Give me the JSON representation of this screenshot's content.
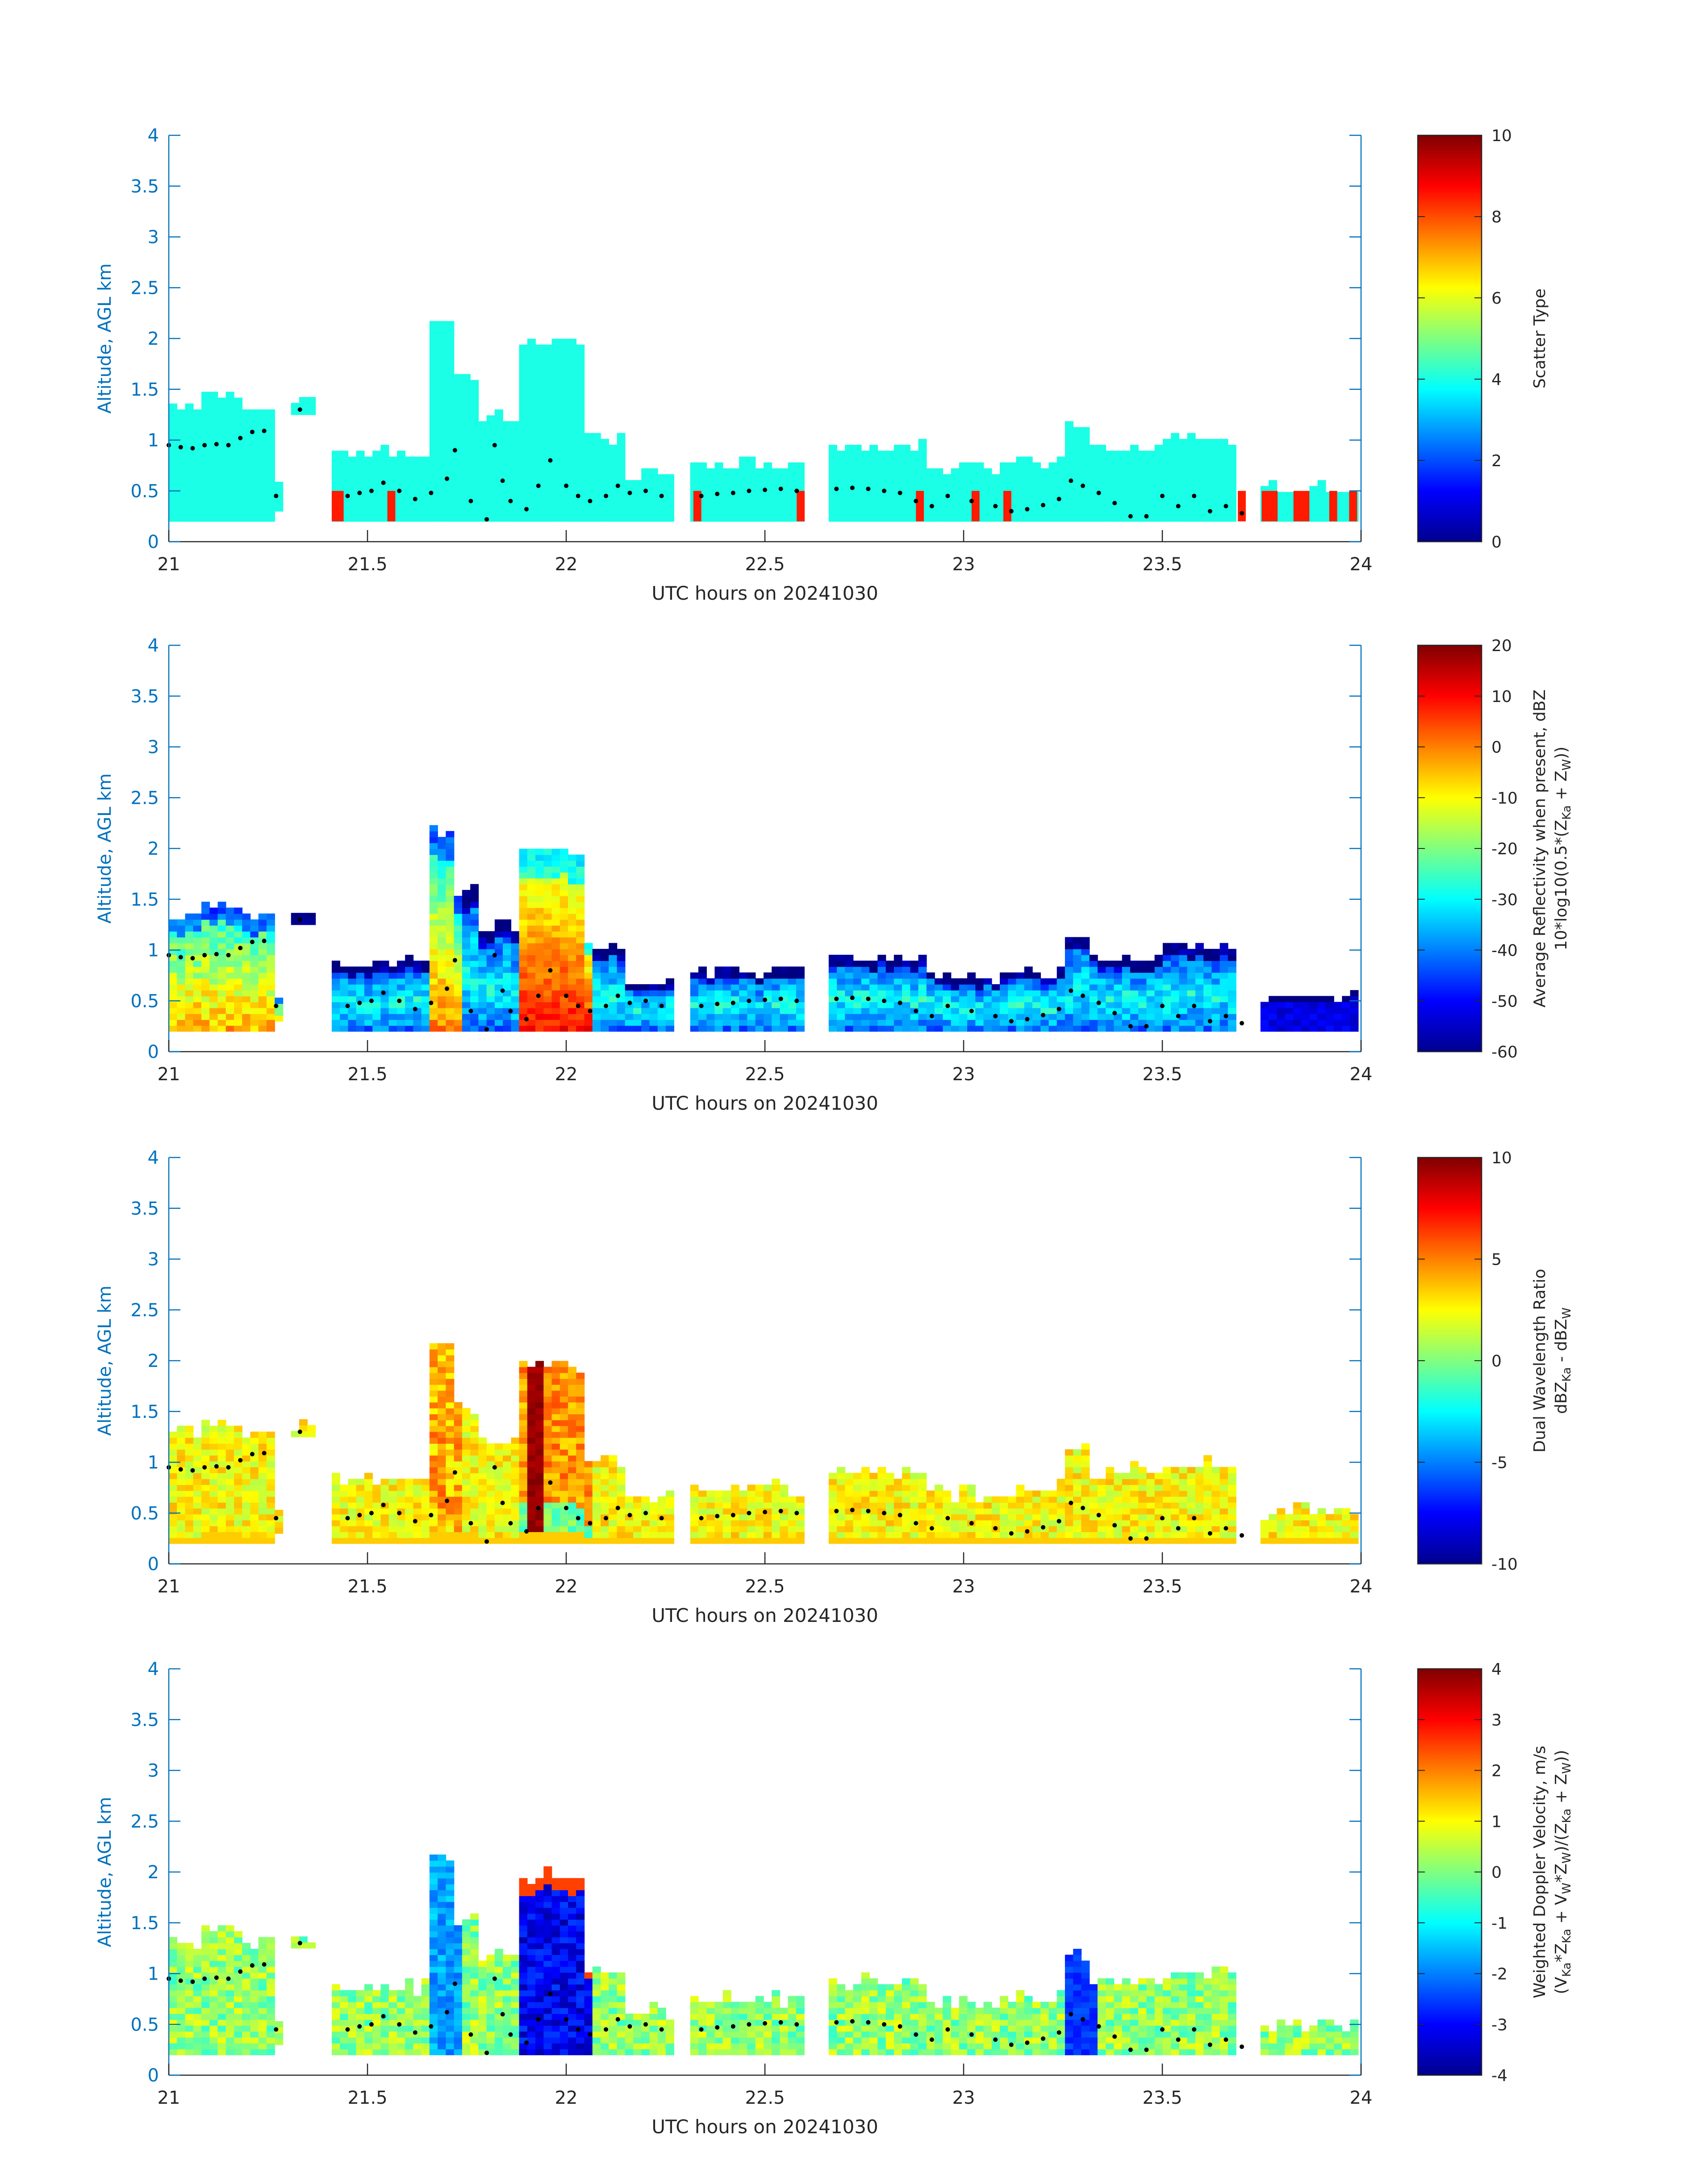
{
  "figure": {
    "panel_count": 4
  },
  "chart_data": [
    {
      "type": "heatmap",
      "id": "scatter",
      "xlabel": "UTC hours on 20241030",
      "ylabel": "Altitude, AGL km",
      "xlim": [
        21,
        24
      ],
      "ylim": [
        0,
        4
      ],
      "xticks": [
        "21",
        "21.5",
        "22",
        "22.5",
        "23",
        "23.5",
        "24"
      ],
      "yticks": [
        "0",
        "0.5",
        "1",
        "1.5",
        "2",
        "2.5",
        "3",
        "3.5",
        "4"
      ],
      "colorbar": {
        "label": "Scatter Type",
        "range": [
          0,
          10
        ],
        "ticks": [
          "0",
          "2",
          "4",
          "6",
          "8",
          "10"
        ]
      },
      "mode": "scatter",
      "cells_note": "mostly scatter type ~4 (cyan), type ~8.5 (orange) patches near ground"
    },
    {
      "type": "heatmap",
      "id": "reflectivity",
      "xlabel": "UTC hours on 20241030",
      "ylabel": "Altitude, AGL km",
      "xlim": [
        21,
        24
      ],
      "ylim": [
        0,
        4
      ],
      "xticks": [
        "21",
        "21.5",
        "22",
        "22.5",
        "23",
        "23.5",
        "24"
      ],
      "yticks": [
        "0",
        "0.5",
        "1",
        "1.5",
        "2",
        "2.5",
        "3",
        "3.5",
        "4"
      ],
      "colorbar": {
        "label_line1": "Average Reflectivity when present, dBZ",
        "label_line2_main": "10*log10(0.5*(Z",
        "label_line2_sub1": "Ka",
        "label_line2_mid": " + Z",
        "label_line2_sub2": "W",
        "label_line2_end": "))",
        "range": [
          -60,
          20
        ],
        "ticks": [
          "-60",
          "-50",
          "-40",
          "-30",
          "-20",
          "-10",
          "0",
          "10",
          "20"
        ]
      },
      "mode": "reflectivity"
    },
    {
      "type": "heatmap",
      "id": "dwr",
      "xlabel": "UTC hours on 20241030",
      "ylabel": "Altitude, AGL km",
      "xlim": [
        21,
        24
      ],
      "ylim": [
        0,
        4
      ],
      "xticks": [
        "21",
        "21.5",
        "22",
        "22.5",
        "23",
        "23.5",
        "24"
      ],
      "yticks": [
        "0",
        "0.5",
        "1",
        "1.5",
        "2",
        "2.5",
        "3",
        "3.5",
        "4"
      ],
      "colorbar": {
        "label_line1": "Dual Wavelength Ratio",
        "label_line2_main": "dBZ",
        "label_line2_sub1": "Ka",
        "label_line2_mid": " - dBZ",
        "label_line2_sub2": "W",
        "label_line2_end": "",
        "range": [
          -10,
          10
        ],
        "ticks": [
          "-10",
          "-5",
          "0",
          "5",
          "10"
        ]
      },
      "mode": "dwr"
    },
    {
      "type": "heatmap",
      "id": "velocity",
      "xlabel": "UTC hours on 20241030",
      "ylabel": "Altitude, AGL km",
      "xlim": [
        21,
        24
      ],
      "ylim": [
        0,
        4
      ],
      "xticks": [
        "21",
        "21.5",
        "22",
        "22.5",
        "23",
        "23.5",
        "24"
      ],
      "yticks": [
        "0",
        "0.5",
        "1",
        "1.5",
        "2",
        "2.5",
        "3",
        "3.5",
        "4"
      ],
      "colorbar": {
        "label_line1": "Weighted Doppler Velocity, m/s",
        "label_line2_main": "(V",
        "label_line2_sub1": "Ka",
        "label_line2_mid": "*Z",
        "label_line2_sub2": "Ka",
        "label_line2_end": " + V",
        "label_line2_sub3": "W",
        "label_line2_end2": "*Z",
        "label_line2_sub4": "W",
        "label_line2_end3": ")/(Z",
        "label_line2_sub5": "Ka",
        "label_line2_end4": " + Z",
        "label_line2_sub6": "W",
        "label_line2_end5": "))",
        "range": [
          -4,
          4
        ],
        "ticks": [
          "-4",
          "-3",
          "-2",
          "-1",
          "0",
          "1",
          "2",
          "3",
          "4"
        ]
      },
      "mode": "velocity"
    }
  ],
  "cloud_profile": {
    "note": "cloud top altitude (km) vs time, each entry [start_hour, end_hour, base_km, top_km]",
    "segments": [
      [
        21.0,
        21.27,
        0.2,
        1.3
      ],
      [
        21.08,
        21.18,
        0.2,
        1.42
      ],
      [
        21.3,
        21.36,
        1.25,
        1.37
      ],
      [
        21.22,
        21.28,
        0.3,
        0.55
      ],
      [
        21.4,
        21.65,
        0.2,
        0.85
      ],
      [
        21.65,
        21.72,
        0.2,
        2.15
      ],
      [
        21.7,
        21.78,
        0.2,
        1.55
      ],
      [
        21.78,
        21.88,
        0.2,
        1.2
      ],
      [
        21.88,
        22.05,
        0.2,
        1.95
      ],
      [
        22.05,
        22.15,
        0.2,
        1.0
      ],
      [
        22.15,
        22.28,
        0.2,
        0.65
      ],
      [
        22.32,
        22.6,
        0.2,
        0.75
      ],
      [
        22.66,
        22.9,
        0.2,
        0.9
      ],
      [
        22.9,
        23.1,
        0.2,
        0.7
      ],
      [
        23.1,
        23.25,
        0.2,
        0.75
      ],
      [
        23.25,
        23.32,
        0.2,
        1.15
      ],
      [
        23.32,
        23.5,
        0.2,
        0.9
      ],
      [
        23.5,
        23.68,
        0.2,
        1.0
      ],
      [
        23.75,
        24.0,
        0.2,
        0.5
      ]
    ],
    "layer_dots": [
      [
        21.0,
        0.95
      ],
      [
        21.03,
        0.93
      ],
      [
        21.06,
        0.92
      ],
      [
        21.09,
        0.95
      ],
      [
        21.12,
        0.96
      ],
      [
        21.15,
        0.95
      ],
      [
        21.18,
        1.02
      ],
      [
        21.21,
        1.08
      ],
      [
        21.24,
        1.09
      ],
      [
        21.27,
        0.45
      ],
      [
        21.33,
        1.3
      ],
      [
        21.45,
        0.45
      ],
      [
        21.48,
        0.48
      ],
      [
        21.51,
        0.5
      ],
      [
        21.54,
        0.58
      ],
      [
        21.58,
        0.5
      ],
      [
        21.62,
        0.42
      ],
      [
        21.66,
        0.48
      ],
      [
        21.7,
        0.62
      ],
      [
        21.72,
        0.9
      ],
      [
        21.76,
        0.4
      ],
      [
        21.8,
        0.22
      ],
      [
        21.82,
        0.95
      ],
      [
        21.84,
        0.6
      ],
      [
        21.86,
        0.4
      ],
      [
        21.9,
        0.32
      ],
      [
        21.93,
        0.55
      ],
      [
        21.96,
        0.8
      ],
      [
        22.0,
        0.55
      ],
      [
        22.03,
        0.45
      ],
      [
        22.06,
        0.4
      ],
      [
        22.1,
        0.45
      ],
      [
        22.13,
        0.55
      ],
      [
        22.16,
        0.48
      ],
      [
        22.2,
        0.5
      ],
      [
        22.24,
        0.45
      ],
      [
        22.34,
        0.45
      ],
      [
        22.38,
        0.47
      ],
      [
        22.42,
        0.48
      ],
      [
        22.46,
        0.5
      ],
      [
        22.5,
        0.51
      ],
      [
        22.54,
        0.52
      ],
      [
        22.58,
        0.5
      ],
      [
        22.68,
        0.52
      ],
      [
        22.72,
        0.53
      ],
      [
        22.76,
        0.52
      ],
      [
        22.8,
        0.5
      ],
      [
        22.84,
        0.48
      ],
      [
        22.88,
        0.4
      ],
      [
        22.92,
        0.35
      ],
      [
        22.96,
        0.45
      ],
      [
        23.02,
        0.4
      ],
      [
        23.08,
        0.35
      ],
      [
        23.12,
        0.3
      ],
      [
        23.16,
        0.32
      ],
      [
        23.2,
        0.36
      ],
      [
        23.24,
        0.42
      ],
      [
        23.27,
        0.6
      ],
      [
        23.3,
        0.55
      ],
      [
        23.34,
        0.48
      ],
      [
        23.38,
        0.38
      ],
      [
        23.42,
        0.25
      ],
      [
        23.46,
        0.25
      ],
      [
        23.5,
        0.45
      ],
      [
        23.54,
        0.35
      ],
      [
        23.58,
        0.45
      ],
      [
        23.62,
        0.3
      ],
      [
        23.66,
        0.35
      ],
      [
        23.7,
        0.28
      ]
    ],
    "ground_patches": [
      [
        21.41,
        21.44
      ],
      [
        21.55,
        21.57
      ],
      [
        22.32,
        22.34
      ],
      [
        22.58,
        22.6
      ],
      [
        22.88,
        22.9
      ],
      [
        23.02,
        23.04
      ],
      [
        23.1,
        23.12
      ],
      [
        23.69,
        23.71
      ],
      [
        23.75,
        23.79
      ],
      [
        23.83,
        23.87
      ],
      [
        23.92,
        23.94
      ],
      [
        23.97,
        23.99
      ]
    ]
  }
}
